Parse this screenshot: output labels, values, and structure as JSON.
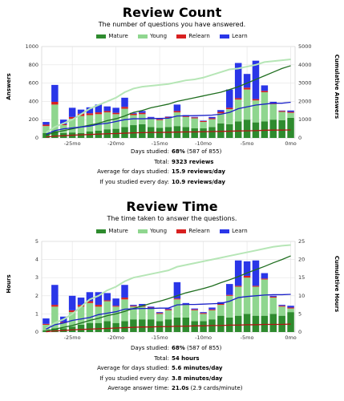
{
  "colors": {
    "mature": "#2e8b2e",
    "young": "#8fd68f",
    "relearn": "#d82020",
    "learn": "#2a36e8"
  },
  "legend": [
    "Mature",
    "Young",
    "Relearn",
    "Learn"
  ],
  "review_count": {
    "title": "Review Count",
    "subtitle": "The number of questions you have answered.",
    "ylabel": "Answers",
    "y2label": "Cumulative Answers",
    "stats": [
      {
        "k": "Days studied:",
        "v": "68%",
        "extra": " (587 of 855)"
      },
      {
        "k": "Total:",
        "v": "9323 reviews",
        "extra": ""
      },
      {
        "k": "Average for days studied:",
        "v": "15.9 reviews/day",
        "extra": ""
      },
      {
        "k": "If you studied every day:",
        "v": "10.9 reviews/day",
        "extra": ""
      }
    ]
  },
  "review_time": {
    "title": "Review Time",
    "subtitle": "The time taken to answer the questions.",
    "ylabel": "Hours",
    "y2label": "Cumulative Hours",
    "stats": [
      {
        "k": "Days studied:",
        "v": "68%",
        "extra": " (587 of 855)"
      },
      {
        "k": "Total:",
        "v": "54 hours",
        "extra": ""
      },
      {
        "k": "Average for days studied:",
        "v": "5.6 minutes/day",
        "extra": ""
      },
      {
        "k": "If you studied every day:",
        "v": "3.8 minutes/day",
        "extra": ""
      },
      {
        "k": "Average answer time:",
        "v": "21.0s",
        "extra": " (2.9 cards/minute)"
      }
    ]
  },
  "chart_data": [
    {
      "type": "bar",
      "title": "Review Count",
      "xlabel": "",
      "ylabel": "Answers",
      "y2label": "Cumulative Answers",
      "x": [
        -28,
        -27,
        -26,
        -25,
        -24,
        -23,
        -22,
        -21,
        -20,
        -19,
        -18,
        -17,
        -16,
        -15,
        -14,
        -13,
        -12,
        -11,
        -10,
        -9,
        -8,
        -7,
        -6,
        -5,
        -4,
        -3,
        -2,
        -1,
        0
      ],
      "xlim": [
        -28.5,
        0.5
      ],
      "xticks": [
        -25,
        -20,
        -15,
        -10,
        -5,
        0
      ],
      "xticklabels": [
        "-25mo",
        "-20mo",
        "-15mo",
        "-10mo",
        "-5mo",
        "0mo"
      ],
      "ylim": [
        0,
        1000
      ],
      "yticks": [
        0,
        200,
        400,
        600,
        800,
        1000
      ],
      "y2lim": [
        0,
        5000
      ],
      "y2ticks": [
        0,
        1000,
        2000,
        3000,
        4000,
        5000
      ],
      "series": [
        {
          "name": "Mature",
          "values": [
            55,
            75,
            55,
            60,
            55,
            70,
            80,
            95,
            100,
            120,
            140,
            150,
            120,
            110,
            120,
            130,
            120,
            105,
            105,
            120,
            160,
            150,
            180,
            200,
            170,
            180,
            200,
            195,
            220
          ]
        },
        {
          "name": "Young",
          "values": [
            75,
            290,
            85,
            150,
            185,
            180,
            180,
            185,
            160,
            200,
            110,
            110,
            90,
            85,
            100,
            150,
            110,
            110,
            70,
            85,
            110,
            165,
            240,
            330,
            240,
            320,
            170,
            90,
            55
          ]
        },
        {
          "name": "Relearn",
          "values": [
            15,
            30,
            10,
            20,
            25,
            20,
            20,
            15,
            15,
            20,
            15,
            15,
            10,
            10,
            10,
            15,
            15,
            10,
            10,
            10,
            15,
            15,
            15,
            20,
            15,
            15,
            15,
            10,
            10
          ]
        },
        {
          "name": "Learn",
          "values": [
            30,
            185,
            50,
            100,
            45,
            65,
            85,
            50,
            55,
            100,
            10,
            20,
            10,
            5,
            5,
            70,
            5,
            5,
            5,
            15,
            20,
            200,
            385,
            150,
            420,
            60,
            10,
            5,
            15
          ]
        },
        {
          "name": "Mature",
          "cumulative": [
            150,
            300,
            400,
            500,
            600,
            700,
            800,
            950,
            1050,
            1200,
            1400,
            1500,
            1650,
            1750,
            1850,
            2000,
            2100,
            2200,
            2300,
            2400,
            2500,
            2650,
            2800,
            3000,
            3200,
            3400,
            3600,
            3800,
            3950
          ]
        },
        {
          "name": "Young",
          "cumulative": [
            300,
            600,
            800,
            1000,
            1300,
            1600,
            1800,
            2000,
            2200,
            2500,
            2700,
            2800,
            2850,
            2900,
            2950,
            3050,
            3150,
            3200,
            3300,
            3450,
            3600,
            3750,
            3800,
            3900,
            4000,
            4150,
            4200,
            4250,
            4300
          ]
        },
        {
          "name": "Relearn",
          "cumulative": [
            50,
            100,
            120,
            150,
            170,
            190,
            210,
            230,
            240,
            260,
            280,
            290,
            300,
            300,
            310,
            320,
            330,
            330,
            340,
            350,
            360,
            370,
            380,
            390,
            400,
            420,
            430,
            430,
            440
          ]
        },
        {
          "name": "Learn",
          "cumulative": [
            200,
            400,
            500,
            550,
            600,
            650,
            750,
            800,
            900,
            1000,
            1050,
            1050,
            1060,
            1070,
            1080,
            1200,
            1210,
            1220,
            1230,
            1250,
            1300,
            1400,
            1600,
            1700,
            1800,
            1850,
            1900,
            1900,
            1950
          ]
        }
      ]
    },
    {
      "type": "bar",
      "title": "Review Time",
      "xlabel": "",
      "ylabel": "Hours",
      "y2label": "Cumulative Hours",
      "x": [
        -28,
        -27,
        -26,
        -25,
        -24,
        -23,
        -22,
        -21,
        -20,
        -19,
        -18,
        -17,
        -16,
        -15,
        -14,
        -13,
        -12,
        -11,
        -10,
        -9,
        -8,
        -7,
        -6,
        -5,
        -4,
        -3,
        -2,
        -1,
        0
      ],
      "xlim": [
        -28.5,
        0.5
      ],
      "xticks": [
        -25,
        -20,
        -15,
        -10,
        -5,
        0
      ],
      "xticklabels": [
        "-25mo",
        "-20mo",
        "-15mo",
        "-10mo",
        "-5mo",
        "0mo"
      ],
      "ylim": [
        0,
        5
      ],
      "yticks": [
        0,
        1,
        2,
        3,
        4,
        5
      ],
      "y2lim": [
        0,
        25
      ],
      "y2ticks": [
        0,
        5,
        10,
        15,
        20,
        25
      ],
      "series": [
        {
          "name": "Mature",
          "values": [
            0.1,
            0.2,
            0.2,
            0.3,
            0.4,
            0.5,
            0.5,
            0.6,
            0.5,
            0.6,
            0.7,
            0.7,
            0.7,
            0.6,
            0.7,
            0.8,
            0.8,
            0.6,
            0.6,
            0.7,
            0.9,
            0.8,
            0.9,
            1.0,
            0.9,
            0.9,
            1.0,
            0.9,
            1.1
          ]
        },
        {
          "name": "Young",
          "values": [
            0.3,
            1.2,
            0.3,
            0.8,
            1.0,
            1.1,
            0.9,
            1.1,
            0.9,
            1.2,
            0.7,
            0.7,
            0.6,
            0.4,
            0.5,
            1.0,
            0.7,
            0.6,
            0.4,
            0.5,
            0.6,
            1.2,
            1.6,
            2.0,
            1.6,
            2.0,
            0.9,
            0.5,
            0.2
          ]
        },
        {
          "name": "Relearn",
          "values": [
            0.05,
            0.1,
            0.05,
            0.1,
            0.1,
            0.1,
            0.1,
            0.05,
            0.05,
            0.1,
            0.05,
            0.05,
            0.05,
            0.05,
            0.05,
            0.05,
            0.05,
            0.05,
            0.05,
            0.05,
            0.05,
            0.05,
            0.05,
            0.1,
            0.05,
            0.05,
            0.05,
            0.05,
            0.05
          ]
        },
        {
          "name": "Learn",
          "values": [
            0.3,
            1.1,
            0.3,
            0.8,
            0.4,
            0.5,
            0.7,
            0.4,
            0.4,
            0.7,
            0.05,
            0.1,
            0.05,
            0.05,
            0.05,
            0.9,
            0.05,
            0.05,
            0.05,
            0.1,
            0.1,
            0.6,
            1.4,
            0.8,
            1.4,
            0.3,
            0.05,
            0.05,
            0.1
          ]
        },
        {
          "name": "Mature",
          "cumulative": [
            0.3,
            0.8,
            1.3,
            1.8,
            2.5,
            3.2,
            3.8,
            4.5,
            5.0,
            5.7,
            6.5,
            7.2,
            7.9,
            8.5,
            9.2,
            10.0,
            10.8,
            11.4,
            12.0,
            12.7,
            13.6,
            14.4,
            15.3,
            16.3,
            17.2,
            18.1,
            19.1,
            20.0,
            21.0
          ]
        },
        {
          "name": "Young",
          "cumulative": [
            1.0,
            2.5,
            3.5,
            5,
            7,
            9,
            10,
            11.5,
            12.5,
            14,
            15,
            15.5,
            16,
            16.5,
            17,
            18,
            18.5,
            19,
            19.5,
            20,
            20.5,
            21,
            21.5,
            22,
            22.5,
            23,
            23.5,
            23.8,
            24
          ]
        },
        {
          "name": "Relearn",
          "cumulative": [
            0.1,
            0.3,
            0.4,
            0.6,
            0.7,
            0.8,
            0.9,
            1.0,
            1.1,
            1.2,
            1.3,
            1.4,
            1.4,
            1.5,
            1.5,
            1.6,
            1.6,
            1.7,
            1.7,
            1.8,
            1.8,
            1.9,
            1.9,
            2.0,
            2.0,
            2.1,
            2.1,
            2.1,
            2.2
          ]
        },
        {
          "name": "Learn",
          "cumulative": [
            0.8,
            2,
            2.5,
            3.2,
            3.6,
            4,
            4.8,
            5.2,
            5.6,
            6.3,
            6.4,
            6.5,
            6.5,
            6.6,
            6.6,
            7.5,
            7.6,
            7.6,
            7.7,
            7.8,
            7.9,
            8.5,
            9.5,
            9.8,
            10,
            10.2,
            10.3,
            10.3,
            10.4
          ]
        }
      ]
    }
  ]
}
